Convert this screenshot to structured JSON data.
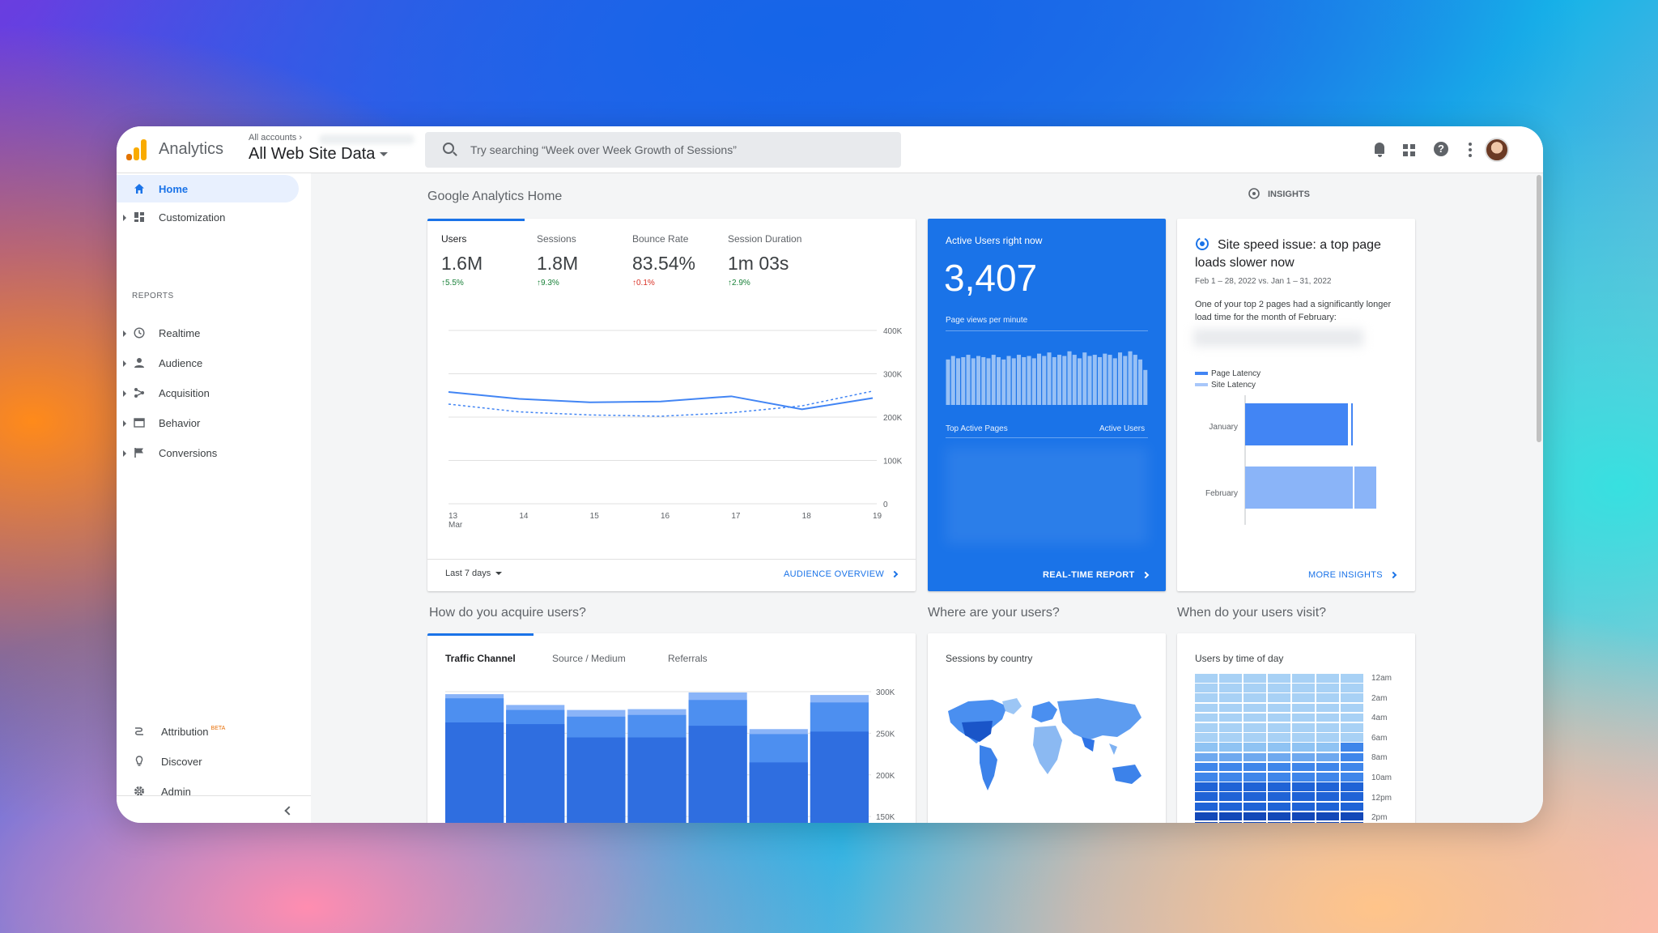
{
  "app": {
    "name": "Analytics",
    "breadcrumb": "All accounts",
    "property": "All Web Site Data"
  },
  "search": {
    "placeholder": "Try searching “Week over Week Growth of Sessions”"
  },
  "sidebar": {
    "items": [
      {
        "label": "Home",
        "icon": "home-icon"
      },
      {
        "label": "Customization",
        "icon": "dashboard-icon"
      }
    ],
    "section": "REPORTS",
    "reports": [
      {
        "label": "Realtime",
        "icon": "clock-icon"
      },
      {
        "label": "Audience",
        "icon": "person-icon"
      },
      {
        "label": "Acquisition",
        "icon": "acquisition-icon"
      },
      {
        "label": "Behavior",
        "icon": "behavior-icon"
      },
      {
        "label": "Conversions",
        "icon": "flag-icon"
      }
    ],
    "bottom": [
      {
        "label": "Attribution",
        "badge": "BETA",
        "icon": "attribution-icon"
      },
      {
        "label": "Discover",
        "icon": "lightbulb-icon"
      },
      {
        "label": "Admin",
        "icon": "gear-icon"
      }
    ]
  },
  "main": {
    "title": "Google Analytics Home",
    "insights_label": "INSIGHTS",
    "metrics": [
      {
        "label": "Users",
        "value": "1.6M",
        "delta": "5.5%",
        "dir": "up"
      },
      {
        "label": "Sessions",
        "value": "1.8M",
        "delta": "9.3%",
        "dir": "up"
      },
      {
        "label": "Bounce Rate",
        "value": "83.54%",
        "delta": "0.1%",
        "dir": "down"
      },
      {
        "label": "Session Duration",
        "value": "1m 03s",
        "delta": "2.9%",
        "dir": "up"
      }
    ],
    "date_range": "Last 7 days",
    "audience_link": "AUDIENCE OVERVIEW",
    "realtime": {
      "title": "Active Users right now",
      "value": "3,407",
      "subtitle": "Page views per minute",
      "col1": "Top Active Pages",
      "col2": "Active Users",
      "link": "REAL-TIME REPORT",
      "bars": [
        0.78,
        0.84,
        0.8,
        0.82,
        0.86,
        0.8,
        0.84,
        0.82,
        0.8,
        0.86,
        0.82,
        0.78,
        0.84,
        0.8,
        0.86,
        0.82,
        0.84,
        0.8,
        0.88,
        0.84,
        0.9,
        0.82,
        0.86,
        0.84,
        0.92,
        0.86,
        0.8,
        0.9,
        0.84,
        0.86,
        0.82,
        0.88,
        0.86,
        0.8,
        0.9,
        0.84,
        0.92,
        0.86,
        0.78,
        0.6
      ]
    },
    "insight": {
      "title": "Site speed issue: a top page loads slower now",
      "dates": "Feb 1 – 28, 2022 vs. Jan 1 – 31, 2022",
      "body": "One of your top 2 pages had a significantly longer load time for the month of February:",
      "legend": [
        "Page Latency",
        "Site Latency"
      ],
      "rows": [
        "January",
        "February"
      ],
      "link": "MORE INSIGHTS"
    },
    "acquire_title": "How do you acquire users?",
    "acquire_tabs": [
      "Traffic Channel",
      "Source / Medium",
      "Referrals"
    ],
    "where_title": "Where are your users?",
    "where_card": "Sessions by country",
    "when_title": "When do your users visit?",
    "when_card": "Users by time of day",
    "hours": [
      "12am",
      "2am",
      "4am",
      "6am",
      "8am",
      "10am",
      "12pm",
      "2pm"
    ]
  },
  "chart_data": [
    {
      "type": "line",
      "categories": [
        "13\nMar",
        "14",
        "15",
        "16",
        "17",
        "18",
        "19"
      ],
      "x_ticks": [
        "13",
        "14",
        "15",
        "16",
        "17",
        "18",
        "19"
      ],
      "x_sub": "Mar",
      "y_ticks": [
        "400K",
        "300K",
        "200K",
        "100K",
        "0"
      ],
      "ylim": [
        0,
        400000
      ],
      "series": [
        {
          "values": [
            258000,
            242000,
            234000,
            236000,
            248000,
            218000,
            244000
          ]
        },
        {
          "values": [
            230000,
            212000,
            205000,
            202000,
            210000,
            226000,
            260000
          ]
        }
      ]
    },
    {
      "type": "bar",
      "y_ticks": [
        "300K",
        "250K",
        "200K",
        "150K"
      ],
      "ylim": [
        150000,
        300000
      ],
      "stacks": [
        {
          "a": 263000,
          "b": 292000,
          "c": 297000
        },
        {
          "a": 261000,
          "b": 278000,
          "c": 284000
        },
        {
          "a": 245000,
          "b": 270000,
          "c": 278000
        },
        {
          "a": 245000,
          "b": 272000,
          "c": 279000
        },
        {
          "a": 259000,
          "b": 290000,
          "c": 299000
        },
        {
          "a": 215000,
          "b": 249000,
          "c": 255000
        },
        {
          "a": 252000,
          "b": 287000,
          "c": 296000
        }
      ]
    }
  ]
}
